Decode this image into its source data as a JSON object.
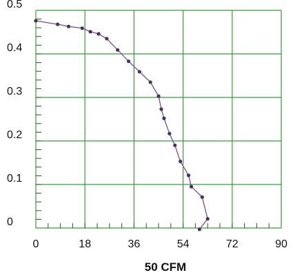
{
  "chart_data": {
    "type": "line",
    "title": "",
    "xlabel": "50 CFM",
    "ylabel": "",
    "xlim": [
      0,
      90
    ],
    "ylim": [
      0,
      0.5
    ],
    "x_ticks": [
      "0",
      "18",
      "36",
      "54",
      "72",
      "90"
    ],
    "y_ticks": [
      "0",
      "0.1",
      "0.2",
      "0.3",
      "0.4",
      "0.5"
    ],
    "grid": true,
    "legend": "none",
    "series": [
      {
        "x": [
          0,
          8,
          12,
          17,
          20,
          23,
          26,
          30,
          34,
          38,
          42,
          45,
          46,
          47,
          49,
          51,
          53,
          56,
          57,
          61,
          63,
          60
        ],
        "y": [
          0.476,
          0.468,
          0.463,
          0.459,
          0.451,
          0.446,
          0.435,
          0.409,
          0.383,
          0.359,
          0.335,
          0.303,
          0.273,
          0.252,
          0.217,
          0.19,
          0.153,
          0.121,
          0.095,
          0.071,
          0.021,
          -0.003
        ]
      }
    ]
  },
  "colors": {
    "grid": "#3a9a3a",
    "line": "#7a5c8e",
    "marker": "#4b2f63",
    "text": "#111111"
  }
}
